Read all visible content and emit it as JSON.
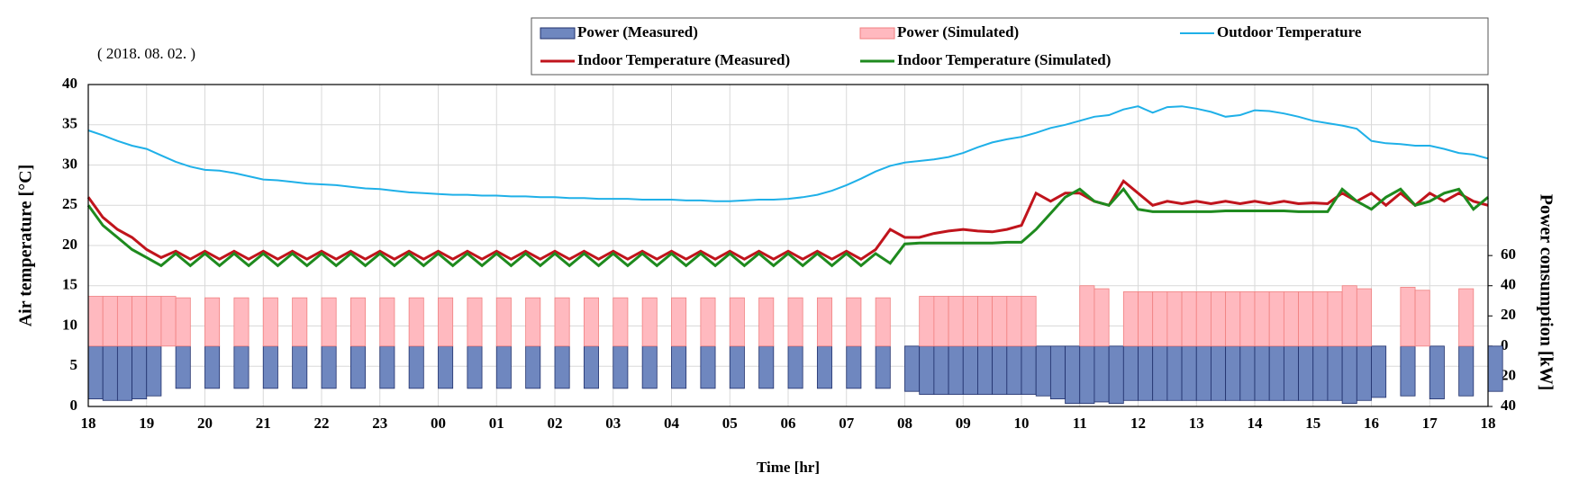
{
  "chart_data": {
    "type": "line",
    "date_label": "( 2018. 08. 02. )",
    "xlabel": "Time [hr]",
    "ylabel": "Air temperature [°C]",
    "y2label": "Power consumption [kW]",
    "grid": true,
    "xlim": [
      18,
      42
    ],
    "xticks": [
      18,
      19,
      20,
      21,
      22,
      23,
      {
        "value": 24,
        "label": "00"
      },
      {
        "value": 25,
        "label": "01"
      },
      {
        "value": 26,
        "label": "02"
      },
      {
        "value": 27,
        "label": "03"
      },
      {
        "value": 28,
        "label": "04"
      },
      {
        "value": 29,
        "label": "05"
      },
      {
        "value": 30,
        "label": "06"
      },
      {
        "value": 31,
        "label": "07"
      },
      {
        "value": 32,
        "label": "08"
      },
      {
        "value": 33,
        "label": "09"
      },
      {
        "value": 34,
        "label": "10"
      },
      {
        "value": 35,
        "label": "11"
      },
      {
        "value": 36,
        "label": "12"
      },
      {
        "value": 37,
        "label": "13"
      },
      {
        "value": 38,
        "label": "14"
      },
      {
        "value": 39,
        "label": "15"
      },
      {
        "value": 40,
        "label": "16"
      },
      {
        "value": 41,
        "label": "17"
      },
      {
        "value": 42,
        "label": "18"
      }
    ],
    "ylim": [
      0,
      40
    ],
    "yticks": [
      0,
      5,
      10,
      15,
      20,
      25,
      30,
      35,
      40
    ],
    "y2lim": [
      -40,
      173.3
    ],
    "y2ticks": [
      {
        "value": -40,
        "label": "40"
      },
      {
        "value": -20,
        "label": "20"
      },
      0,
      20,
      40,
      60
    ],
    "x": [
      18,
      18.25,
      18.5,
      18.75,
      19,
      19.25,
      19.5,
      19.75,
      20,
      20.25,
      20.5,
      20.75,
      21,
      21.25,
      21.5,
      21.75,
      22,
      22.25,
      22.5,
      22.75,
      23,
      23.25,
      23.5,
      23.75,
      24,
      24.25,
      24.5,
      24.75,
      25,
      25.25,
      25.5,
      25.75,
      26,
      26.25,
      26.5,
      26.75,
      27,
      27.25,
      27.5,
      27.75,
      28,
      28.25,
      28.5,
      28.75,
      29,
      29.25,
      29.5,
      29.75,
      30,
      30.25,
      30.5,
      30.75,
      31,
      31.25,
      31.5,
      31.75,
      32,
      32.25,
      32.5,
      32.75,
      33,
      33.25,
      33.5,
      33.75,
      34,
      34.25,
      34.5,
      34.75,
      35,
      35.25,
      35.5,
      35.75,
      36,
      36.25,
      36.5,
      36.75,
      37,
      37.25,
      37.5,
      37.75,
      38,
      38.25,
      38.5,
      38.75,
      39,
      39.25,
      39.5,
      39.75,
      40,
      40.25,
      40.5,
      40.75,
      41,
      41.25,
      41.5,
      41.75,
      42
    ],
    "series": [
      {
        "name": "Power (Measured)",
        "color": "#6f87bf",
        "stroke": "#1f2f6b",
        "kind": "bar",
        "axis": "y2",
        "values": [
          -35,
          -36,
          -36,
          -35,
          -33,
          0,
          -28,
          0,
          -28,
          0,
          -28,
          0,
          -28,
          0,
          -28,
          0,
          -28,
          0,
          -28,
          0,
          -28,
          0,
          -28,
          0,
          -28,
          0,
          -28,
          0,
          -28,
          0,
          -28,
          0,
          -28,
          0,
          -28,
          0,
          -28,
          0,
          -28,
          0,
          -28,
          0,
          -28,
          0,
          -28,
          0,
          -28,
          0,
          -28,
          0,
          -28,
          0,
          -28,
          0,
          -28,
          0,
          -30,
          -32,
          -32,
          -32,
          -32,
          -32,
          -32,
          -32,
          -32,
          -33,
          -35,
          -38,
          -38,
          -37,
          -38,
          -36,
          -36,
          -36,
          -36,
          -36,
          -36,
          -36,
          -36,
          -36,
          -36,
          -36,
          -36,
          -36,
          -36,
          -36,
          -38,
          -36,
          -34,
          0,
          -33,
          0,
          -35,
          0,
          -33,
          0,
          -30
        ]
      },
      {
        "name": "Power (Simulated)",
        "color": "#ffb9bf",
        "stroke": "#f08080",
        "kind": "bar",
        "axis": "y2",
        "values": [
          33,
          33,
          33,
          33,
          33,
          33,
          32,
          0,
          32,
          0,
          32,
          0,
          32,
          0,
          32,
          0,
          32,
          0,
          32,
          0,
          32,
          0,
          32,
          0,
          32,
          0,
          32,
          0,
          32,
          0,
          32,
          0,
          32,
          0,
          32,
          0,
          32,
          0,
          32,
          0,
          32,
          0,
          32,
          0,
          32,
          0,
          32,
          0,
          32,
          0,
          32,
          0,
          32,
          0,
          32,
          0,
          0,
          33,
          33,
          33,
          33,
          33,
          33,
          33,
          33,
          0,
          0,
          0,
          40,
          38,
          0,
          36,
          36,
          36,
          36,
          36,
          36,
          36,
          36,
          36,
          36,
          36,
          36,
          36,
          36,
          36,
          40,
          38,
          0,
          0,
          39,
          37,
          0,
          0,
          38,
          0,
          0
        ]
      },
      {
        "name": "Outdoor Temperature",
        "color": "#1fb0e8",
        "kind": "line",
        "values": [
          34.3,
          33.7,
          33.0,
          32.4,
          32.0,
          31.2,
          30.4,
          29.8,
          29.4,
          29.3,
          29.0,
          28.6,
          28.2,
          28.1,
          27.9,
          27.7,
          27.6,
          27.5,
          27.3,
          27.1,
          27.0,
          26.8,
          26.6,
          26.5,
          26.4,
          26.3,
          26.3,
          26.2,
          26.2,
          26.1,
          26.1,
          26.0,
          26.0,
          25.9,
          25.9,
          25.8,
          25.8,
          25.8,
          25.7,
          25.7,
          25.7,
          25.6,
          25.6,
          25.5,
          25.5,
          25.6,
          25.7,
          25.7,
          25.8,
          26.0,
          26.3,
          26.8,
          27.5,
          28.3,
          29.2,
          29.9,
          30.3,
          30.5,
          30.7,
          31.0,
          31.5,
          32.2,
          32.8,
          33.2,
          33.5,
          34.0,
          34.6,
          35.0,
          35.5,
          36.0,
          36.2,
          36.9,
          37.3,
          36.5,
          37.2,
          37.3,
          37.0,
          36.6,
          36.0,
          36.2,
          36.8,
          36.7,
          36.4,
          36.0,
          35.5,
          35.2,
          34.9,
          34.5,
          33.0,
          32.7,
          32.6,
          32.4,
          32.4,
          32.0,
          31.5,
          31.3,
          30.8
        ]
      },
      {
        "name": "Indoor Temperature (Measured)",
        "color": "#c0141c",
        "kind": "line",
        "values": [
          26,
          23.5,
          22,
          21,
          19.5,
          18.5,
          19.3,
          18.3,
          19.3,
          18.3,
          19.3,
          18.3,
          19.3,
          18.3,
          19.3,
          18.3,
          19.3,
          18.3,
          19.3,
          18.3,
          19.3,
          18.3,
          19.3,
          18.3,
          19.3,
          18.3,
          19.3,
          18.3,
          19.3,
          18.3,
          19.3,
          18.3,
          19.3,
          18.3,
          19.3,
          18.3,
          19.3,
          18.3,
          19.3,
          18.3,
          19.3,
          18.3,
          19.3,
          18.3,
          19.3,
          18.3,
          19.3,
          18.3,
          19.3,
          18.3,
          19.3,
          18.3,
          19.3,
          18.3,
          19.5,
          22,
          21,
          21,
          21.5,
          21.8,
          22,
          21.8,
          21.7,
          22,
          22.5,
          26.5,
          25.5,
          26.5,
          26.5,
          25.5,
          25,
          28,
          26.5,
          25,
          25.5,
          25.2,
          25.5,
          25.2,
          25.5,
          25.2,
          25.5,
          25.2,
          25.5,
          25.2,
          25.3,
          25.2,
          26.5,
          25.5,
          26.5,
          25,
          26.5,
          25,
          26.5,
          25.5,
          26.5,
          25.5,
          25
        ]
      },
      {
        "name": "Indoor Temperature (Simulated)",
        "color": "#1e8a1e",
        "kind": "line",
        "values": [
          25,
          22.5,
          21,
          19.5,
          18.5,
          17.5,
          19,
          17.5,
          19,
          17.5,
          19,
          17.5,
          19,
          17.5,
          19,
          17.5,
          19,
          17.5,
          19,
          17.5,
          19,
          17.5,
          19,
          17.5,
          19,
          17.5,
          19,
          17.5,
          19,
          17.5,
          19,
          17.5,
          19,
          17.5,
          19,
          17.5,
          19,
          17.5,
          19,
          17.5,
          19,
          17.5,
          19,
          17.5,
          19,
          17.5,
          19,
          17.5,
          19,
          17.5,
          19,
          17.5,
          19,
          17.5,
          19,
          17.8,
          20.2,
          20.3,
          20.3,
          20.3,
          20.3,
          20.3,
          20.3,
          20.4,
          20.4,
          22,
          24,
          26,
          27,
          25.5,
          25,
          27,
          24.5,
          24.2,
          24.2,
          24.2,
          24.2,
          24.2,
          24.3,
          24.3,
          24.3,
          24.3,
          24.3,
          24.2,
          24.2,
          24.2,
          27,
          25.5,
          24.5,
          26,
          27,
          25,
          25.5,
          26.5,
          27,
          24.5,
          26
        ]
      }
    ]
  }
}
